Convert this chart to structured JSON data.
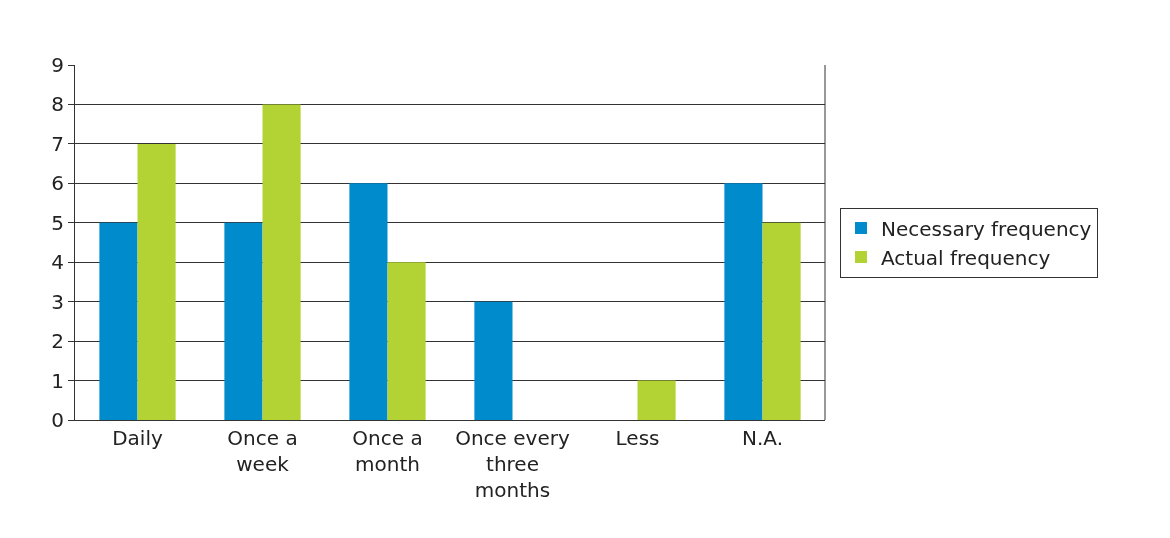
{
  "chart_data": {
    "type": "bar",
    "categories": [
      "Daily",
      "Once a week",
      "Once a month",
      "Once every three months",
      "Less",
      "N.A."
    ],
    "series": [
      {
        "name": "Necessary frequency",
        "color": "#008ccc",
        "values": [
          5,
          5,
          6,
          3,
          0,
          6
        ]
      },
      {
        "name": "Actual frequency",
        "color": "#b3d334",
        "values": [
          7,
          8,
          4,
          0,
          1,
          5
        ]
      }
    ],
    "ylim": [
      0,
      9
    ],
    "yticks": [
      0,
      1,
      2,
      3,
      4,
      5,
      6,
      7,
      8,
      9
    ],
    "grid": "y",
    "legend": "right"
  }
}
